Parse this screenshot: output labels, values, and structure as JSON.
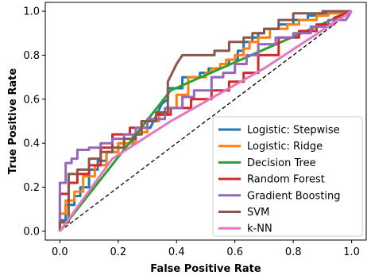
{
  "chart_data": {
    "type": "line",
    "title": "",
    "xlabel": "False Positive Rate",
    "ylabel": "True Positive Rate",
    "xlim": [
      -0.05,
      1.05
    ],
    "ylim": [
      -0.04,
      1.04
    ],
    "xticks": [
      0.0,
      0.2,
      0.4,
      0.6,
      0.8,
      1.0
    ],
    "yticks": [
      0.0,
      0.2,
      0.4,
      0.6,
      0.8,
      1.0
    ],
    "xtick_labels": [
      "0.0",
      "0.2",
      "0.4",
      "0.6",
      "0.8",
      "1.0"
    ],
    "ytick_labels": [
      "0.0",
      "0.2",
      "0.4",
      "0.6",
      "0.8",
      "1.0"
    ],
    "legend_position": "bottom-right",
    "grid": false,
    "reference_line": {
      "x": [
        0,
        1
      ],
      "y": [
        0,
        1
      ],
      "style": "dashed",
      "color": "#000000"
    },
    "series": [
      {
        "name": "Logistic: Stepwise",
        "color": "#1f77b4",
        "x": [
          0,
          0,
          0.02,
          0.02,
          0.05,
          0.05,
          0.07,
          0.07,
          0.1,
          0.1,
          0.13,
          0.13,
          0.16,
          0.16,
          0.2,
          0.2,
          0.25,
          0.25,
          0.28,
          0.28,
          0.31,
          0.35,
          0.37,
          0.37,
          0.42,
          0.42,
          0.48,
          0.48,
          0.51,
          0.51,
          0.55,
          0.55,
          0.58,
          0.58,
          0.61,
          0.61,
          0.63,
          0.63,
          0.66,
          0.66,
          0.68,
          0.68,
          0.7,
          0.7,
          0.75,
          0.75,
          0.8,
          0.8,
          0.85,
          0.85,
          0.9,
          0.9,
          0.95,
          1.0
        ],
        "y": [
          0,
          0.05,
          0.05,
          0.12,
          0.12,
          0.16,
          0.16,
          0.2,
          0.2,
          0.28,
          0.28,
          0.32,
          0.32,
          0.36,
          0.36,
          0.4,
          0.4,
          0.44,
          0.44,
          0.47,
          0.47,
          0.58,
          0.6,
          0.65,
          0.65,
          0.7,
          0.7,
          0.72,
          0.72,
          0.74,
          0.74,
          0.76,
          0.76,
          0.78,
          0.78,
          0.82,
          0.82,
          0.86,
          0.86,
          0.88,
          0.88,
          0.9,
          0.9,
          0.92,
          0.92,
          0.94,
          0.94,
          0.96,
          0.96,
          0.98,
          0.98,
          0.99,
          0.99,
          1.0
        ]
      },
      {
        "name": "Logistic: Ridge",
        "color": "#ff7f0e",
        "x": [
          0,
          0,
          0.02,
          0.02,
          0.05,
          0.05,
          0.08,
          0.08,
          0.12,
          0.12,
          0.16,
          0.16,
          0.2,
          0.2,
          0.26,
          0.26,
          0.3,
          0.3,
          0.34,
          0.34,
          0.37,
          0.37,
          0.4,
          0.4,
          0.44,
          0.44,
          0.5,
          0.5,
          0.52,
          0.52,
          0.55,
          0.55,
          0.57,
          0.57,
          0.6,
          0.6,
          0.63,
          0.63,
          0.65,
          0.65,
          0.68,
          0.68,
          0.72,
          0.72,
          0.78,
          0.78,
          0.82,
          0.82,
          0.88,
          0.88,
          0.92,
          0.92,
          0.96,
          1.0
        ],
        "y": [
          0,
          0.08,
          0.08,
          0.14,
          0.14,
          0.18,
          0.18,
          0.25,
          0.25,
          0.3,
          0.3,
          0.36,
          0.36,
          0.4,
          0.4,
          0.45,
          0.45,
          0.5,
          0.5,
          0.53,
          0.53,
          0.56,
          0.56,
          0.62,
          0.62,
          0.7,
          0.7,
          0.72,
          0.72,
          0.74,
          0.74,
          0.76,
          0.76,
          0.78,
          0.78,
          0.8,
          0.8,
          0.83,
          0.83,
          0.86,
          0.86,
          0.88,
          0.88,
          0.92,
          0.92,
          0.94,
          0.94,
          0.96,
          0.96,
          0.98,
          0.98,
          0.99,
          0.99,
          1.0
        ]
      },
      {
        "name": "Decision Tree",
        "color": "#2ca02c",
        "x": [
          0,
          0.38,
          1.0
        ],
        "y": [
          0,
          0.64,
          1.0
        ]
      },
      {
        "name": "Random Forest",
        "color": "#d62728",
        "x": [
          0,
          0,
          0.03,
          0.03,
          0.06,
          0.06,
          0.1,
          0.1,
          0.14,
          0.14,
          0.18,
          0.18,
          0.24,
          0.24,
          0.28,
          0.28,
          0.33,
          0.33,
          0.38,
          0.38,
          0.45,
          0.45,
          0.52,
          0.52,
          0.58,
          0.58,
          0.63,
          0.63,
          0.68,
          0.68,
          0.75,
          0.75,
          0.82,
          0.82,
          0.88,
          0.88,
          0.94,
          0.94,
          1.0
        ],
        "y": [
          0,
          0.17,
          0.17,
          0.22,
          0.22,
          0.26,
          0.26,
          0.3,
          0.3,
          0.38,
          0.38,
          0.44,
          0.44,
          0.47,
          0.47,
          0.5,
          0.5,
          0.53,
          0.53,
          0.56,
          0.56,
          0.6,
          0.6,
          0.64,
          0.64,
          0.68,
          0.68,
          0.72,
          0.72,
          0.8,
          0.8,
          0.88,
          0.88,
          0.91,
          0.91,
          0.94,
          0.94,
          0.97,
          1.0
        ]
      },
      {
        "name": "Gradient Boosting",
        "color": "#9467bd",
        "x": [
          0,
          0,
          0.02,
          0.02,
          0.04,
          0.04,
          0.06,
          0.06,
          0.1,
          0.1,
          0.14,
          0.14,
          0.18,
          0.18,
          0.22,
          0.22,
          0.26,
          0.26,
          0.3,
          0.3,
          0.36,
          0.36,
          0.42,
          0.42,
          0.46,
          0.46,
          0.52,
          0.52,
          0.56,
          0.56,
          0.6,
          0.6,
          0.64,
          0.64,
          0.68,
          0.68,
          0.74,
          0.74,
          0.8,
          0.8,
          0.86,
          0.86,
          0.92,
          0.92,
          0.98,
          1.0
        ],
        "y": [
          0,
          0.22,
          0.22,
          0.31,
          0.31,
          0.33,
          0.33,
          0.37,
          0.37,
          0.38,
          0.38,
          0.4,
          0.4,
          0.42,
          0.42,
          0.44,
          0.44,
          0.47,
          0.47,
          0.51,
          0.51,
          0.56,
          0.56,
          0.61,
          0.61,
          0.64,
          0.64,
          0.7,
          0.7,
          0.72,
          0.72,
          0.76,
          0.76,
          0.8,
          0.8,
          0.85,
          0.85,
          0.88,
          0.88,
          0.9,
          0.9,
          0.93,
          0.93,
          0.96,
          0.96,
          1.0
        ]
      },
      {
        "name": "SVM",
        "color": "#8c564b",
        "x": [
          0,
          0,
          0.03,
          0.03,
          0.06,
          0.06,
          0.1,
          0.1,
          0.14,
          0.14,
          0.18,
          0.18,
          0.22,
          0.22,
          0.26,
          0.26,
          0.28,
          0.28,
          0.33,
          0.33,
          0.37,
          0.37,
          0.4,
          0.42,
          0.48,
          0.48,
          0.53,
          0.53,
          0.58,
          0.58,
          0.63,
          0.63,
          0.66,
          0.66,
          0.7,
          0.7,
          0.75,
          0.75,
          0.8,
          0.8,
          0.9,
          0.9,
          0.95,
          1.0
        ],
        "y": [
          0,
          0.04,
          0.04,
          0.26,
          0.26,
          0.28,
          0.28,
          0.33,
          0.33,
          0.36,
          0.36,
          0.38,
          0.38,
          0.42,
          0.42,
          0.44,
          0.44,
          0.5,
          0.5,
          0.54,
          0.54,
          0.68,
          0.76,
          0.8,
          0.8,
          0.8,
          0.8,
          0.82,
          0.82,
          0.86,
          0.86,
          0.88,
          0.88,
          0.9,
          0.9,
          0.92,
          0.92,
          0.96,
          0.96,
          0.99,
          0.99,
          1.0,
          1.0,
          1.0
        ]
      },
      {
        "name": "k-NN",
        "color": "#e377c2",
        "x": [
          0,
          0.18,
          0.38,
          0.7,
          1.0
        ],
        "y": [
          0,
          0.33,
          0.5,
          0.74,
          1.0
        ]
      }
    ]
  }
}
